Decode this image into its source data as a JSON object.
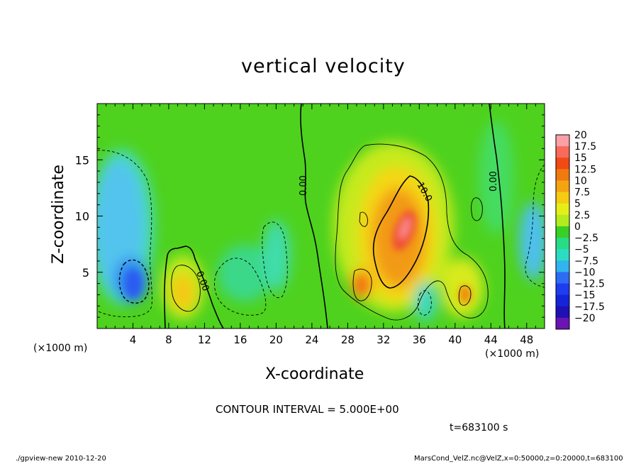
{
  "chart_data": {
    "type": "heatmap",
    "title": "vertical velocity",
    "xlabel": "X-coordinate",
    "ylabel": "Z-coordinate",
    "x_unit": "(×1000 m)",
    "y_unit": "(×1000 m)",
    "xlim": [
      0,
      50
    ],
    "ylim": [
      0,
      20
    ],
    "x_ticks": [
      4,
      8,
      12,
      16,
      20,
      24,
      28,
      32,
      36,
      40,
      44,
      48
    ],
    "y_ticks": [
      5,
      10,
      15
    ],
    "colorbar": {
      "labels": [
        "20",
        "17.5",
        "15",
        "12.5",
        "10",
        "7.5",
        "5",
        "2.5",
        "0",
        "−2.5",
        "−5",
        "−7.5",
        "−10",
        "−12.5",
        "−15",
        "−17.5",
        "−20"
      ],
      "range": [
        -20,
        20
      ],
      "colors": [
        "#fca0a8",
        "#f86a5a",
        "#f24a14",
        "#f07a10",
        "#f4a412",
        "#f6cc12",
        "#e6ee18",
        "#b2ec1e",
        "#38d024",
        "#28dc86",
        "#2cdcc2",
        "#32b4ee",
        "#2d6cf4",
        "#1e3cf0",
        "#1424d8",
        "#1e10b4",
        "#6a14b4"
      ]
    },
    "contour_labels": [
      "0.00",
      "0.00",
      "0.00",
      "10.0"
    ],
    "features": [
      {
        "x": 4,
        "z": 11,
        "value": -8
      },
      {
        "x": 4.5,
        "z": 4.5,
        "value": -11
      },
      {
        "x": 9.5,
        "z": 4,
        "value": 9
      },
      {
        "x": 29.5,
        "z": 4,
        "value": 12.5
      },
      {
        "x": 34,
        "z": 8.5,
        "value": 17
      },
      {
        "x": 41,
        "z": 3,
        "value": 12
      },
      {
        "x": 48.5,
        "z": 8,
        "value": -6
      }
    ],
    "contour_interval": "CONTOUR INTERVAL = 5.000E+00",
    "time": "t=683100 s"
  },
  "footer": {
    "left": "./gpview-new  2010-12-20",
    "right": "MarsCond_VelZ.nc@VelZ,x=0:50000,z=0:20000,t=683100"
  }
}
